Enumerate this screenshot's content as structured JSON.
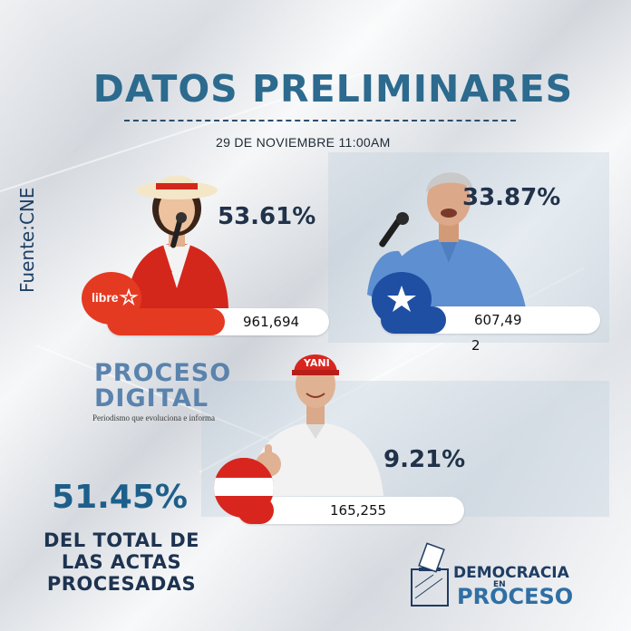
{
  "headline": "DATOS PRELIMINARES",
  "date": "29 DE  NOVIEMBRE 11:00AM",
  "source": "Fuente:CNE",
  "candidates": [
    {
      "party_logo": "libre",
      "percent": "53.61%",
      "votes": "961,694",
      "color": "#e53a22"
    },
    {
      "party_logo": "star-icon",
      "percent": "33.87%",
      "votes_line1": "607,49",
      "votes_line2": "2",
      "color": "#1f4fa3"
    },
    {
      "party_logo": "red-white-flag-icon",
      "percent": "9.21%",
      "votes": "165,255",
      "color": "#d8261f",
      "cap_text": "YANI"
    }
  ],
  "proceso_digital": {
    "line1": "PROCESO",
    "line2": "DIGITAL",
    "tagline": "Periodismo que evoluciona e informa"
  },
  "total": {
    "percent": "51.45%",
    "line1": "DEL TOTAL DE",
    "line2": "LAS ACTAS",
    "line3": "PROCESADAS"
  },
  "democracia_logo": {
    "word1": "DEMOCRACIA",
    "word2": "EN",
    "word3": "PROCESO",
    "icon": "ballot-box-icon"
  },
  "colors": {
    "headline": "#2c6a8e",
    "dark_text": "#21324a",
    "libre_red": "#e53a22",
    "national_blue": "#1f4fa3",
    "liberal_red": "#d8261f"
  }
}
